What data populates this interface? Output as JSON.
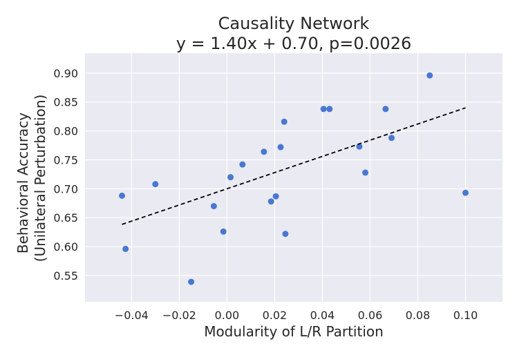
{
  "chart_data": {
    "type": "scatter",
    "title": "Causality Network",
    "subtitle": "y = 1.40x + 0.70, p=0.0026",
    "xlabel": "Modularity of L/R Partition",
    "ylabel_line1": "Behavioral Accuracy",
    "ylabel_line2": "(Unilateral Perturbation)",
    "xlim": [
      -0.0595,
      0.1155
    ],
    "ylim": [
      0.5045,
      0.9345
    ],
    "x_ticks": [
      -0.04,
      -0.02,
      0.0,
      0.02,
      0.04,
      0.06,
      0.08,
      0.1
    ],
    "x_tick_labels": [
      "−0.04",
      "−0.02",
      "0.00",
      "0.02",
      "0.04",
      "0.06",
      "0.08",
      "0.10"
    ],
    "y_ticks": [
      0.55,
      0.6,
      0.65,
      0.7,
      0.75,
      0.8,
      0.85,
      0.9
    ],
    "y_tick_labels": [
      "0.55",
      "0.60",
      "0.65",
      "0.70",
      "0.75",
      "0.80",
      "0.85",
      "0.90"
    ],
    "grid": true,
    "background_color": "#eaeaf2",
    "point_color": "#4878cf",
    "fit_line_color": "#000000",
    "fit_line": {
      "slope": 1.4,
      "intercept": 0.7,
      "x_range": [
        -0.044,
        0.1
      ]
    },
    "points": [
      {
        "x": -0.044,
        "y": 0.688
      },
      {
        "x": -0.0425,
        "y": 0.596
      },
      {
        "x": -0.03,
        "y": 0.708
      },
      {
        "x": -0.015,
        "y": 0.539
      },
      {
        "x": -0.0055,
        "y": 0.67
      },
      {
        "x": -0.0015,
        "y": 0.626
      },
      {
        "x": 0.0015,
        "y": 0.72
      },
      {
        "x": 0.0065,
        "y": 0.742
      },
      {
        "x": 0.0155,
        "y": 0.764
      },
      {
        "x": 0.0185,
        "y": 0.678
      },
      {
        "x": 0.0205,
        "y": 0.687
      },
      {
        "x": 0.0225,
        "y": 0.772
      },
      {
        "x": 0.024,
        "y": 0.816
      },
      {
        "x": 0.0245,
        "y": 0.622
      },
      {
        "x": 0.0405,
        "y": 0.838
      },
      {
        "x": 0.043,
        "y": 0.838
      },
      {
        "x": 0.0555,
        "y": 0.773
      },
      {
        "x": 0.058,
        "y": 0.728
      },
      {
        "x": 0.0665,
        "y": 0.838
      },
      {
        "x": 0.069,
        "y": 0.788
      },
      {
        "x": 0.085,
        "y": 0.896
      },
      {
        "x": 0.1,
        "y": 0.693
      }
    ]
  }
}
